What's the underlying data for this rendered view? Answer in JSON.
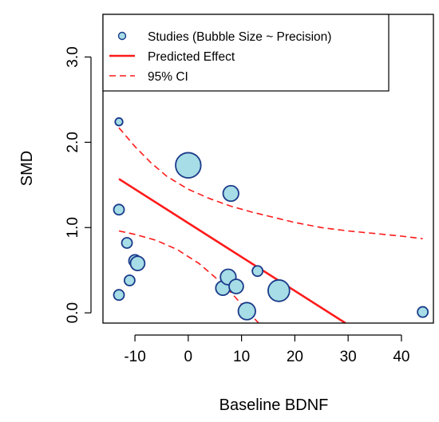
{
  "chart_data": {
    "type": "scatter",
    "xlabel": "Baseline BDNF",
    "ylabel": "SMD",
    "xlim": [
      -16,
      46
    ],
    "ylim": [
      -0.12,
      3.5
    ],
    "x_ticks": [
      -10,
      0,
      10,
      20,
      30,
      40
    ],
    "x_tick_labels": [
      "-10",
      "0",
      "10",
      "20",
      "30",
      "40"
    ],
    "y_ticks": [
      0,
      1,
      2,
      3
    ],
    "y_tick_labels": [
      "0.0",
      "1.0",
      "2.0",
      "3.0"
    ],
    "grid": false,
    "legend_position": "top-left",
    "legend": {
      "studies": "Studies (Bubble Size ~ Precision)",
      "predicted": "Predicted Effect",
      "ci": "95% CI"
    },
    "colors": {
      "bubble_fill": "#a6dde6",
      "bubble_stroke": "#1a3a8a",
      "fit_line": "#ff1a1a",
      "ci_line": "#ff1a1a"
    },
    "points": [
      {
        "x": -13.0,
        "y": 2.24,
        "precision": 0.9
      },
      {
        "x": -13.0,
        "y": 1.21,
        "precision": 1.7
      },
      {
        "x": -13.0,
        "y": 0.21,
        "precision": 1.7
      },
      {
        "x": -11.5,
        "y": 0.82,
        "precision": 1.7
      },
      {
        "x": -11.0,
        "y": 0.38,
        "precision": 1.7
      },
      {
        "x": -10.0,
        "y": 0.61,
        "precision": 2.3
      },
      {
        "x": -9.5,
        "y": 0.58,
        "precision": 3.2
      },
      {
        "x": 0.0,
        "y": 1.73,
        "precision": 10.0
      },
      {
        "x": 6.5,
        "y": 0.29,
        "precision": 3.2
      },
      {
        "x": 7.5,
        "y": 0.42,
        "precision": 3.8
      },
      {
        "x": 8.0,
        "y": 1.4,
        "precision": 3.8
      },
      {
        "x": 9.0,
        "y": 0.31,
        "precision": 3.2
      },
      {
        "x": 11.0,
        "y": 0.02,
        "precision": 4.6
      },
      {
        "x": 13.0,
        "y": 0.49,
        "precision": 1.7
      },
      {
        "x": 17.0,
        "y": 0.26,
        "precision": 7.2
      },
      {
        "x": 44.0,
        "y": 0.01,
        "precision": 1.7
      }
    ],
    "predicted_line": {
      "x": [
        -13.0,
        29.5
      ],
      "y": [
        1.57,
        -0.12
      ]
    },
    "ci_upper": {
      "x": [
        -13,
        -10,
        -7,
        -4,
        0,
        4,
        8,
        12,
        16,
        20,
        25,
        30,
        35,
        40,
        44
      ],
      "y": [
        2.17,
        1.95,
        1.76,
        1.6,
        1.45,
        1.34,
        1.25,
        1.18,
        1.12,
        1.06,
        1.0,
        0.96,
        0.93,
        0.9,
        0.87
      ]
    },
    "ci_lower": {
      "x": [
        -13,
        -10,
        -6,
        -2,
        2,
        5,
        8,
        10,
        12,
        13.5
      ],
      "y": [
        0.96,
        0.92,
        0.85,
        0.74,
        0.58,
        0.42,
        0.24,
        0.1,
        -0.04,
        -0.14
      ]
    }
  }
}
